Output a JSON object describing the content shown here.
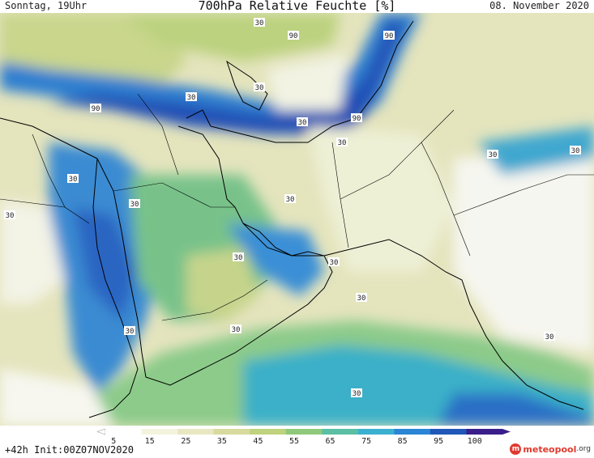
{
  "header": {
    "left": "Sonntag, 19Uhr",
    "title": "700hPa Relative Feuchte [%]",
    "right": "08. November 2020"
  },
  "footer": {
    "left": "+42h Init:00Z07NOV2020",
    "logo_prefix": "meteo",
    "logo_accent": "pool",
    "logo_tld": ".org"
  },
  "legend": {
    "ticks": [
      "5",
      "15",
      "25",
      "35",
      "45",
      "55",
      "65",
      "75",
      "85",
      "95",
      "100"
    ],
    "colors": [
      "#ffffff",
      "#f4f3dd",
      "#e9e7c2",
      "#d8da9e",
      "#bfd27d",
      "#8fca7a",
      "#5bbfa3",
      "#3cb0d0",
      "#2a86d4",
      "#2057b8",
      "#3a1e8a"
    ]
  },
  "contour_labels": [
    {
      "text": "30"
    },
    {
      "text": "90"
    },
    {
      "text": "90"
    },
    {
      "text": "30"
    },
    {
      "text": "30"
    },
    {
      "text": "90"
    },
    {
      "text": "30"
    },
    {
      "text": "90"
    },
    {
      "text": "30"
    },
    {
      "text": "30"
    },
    {
      "text": "30"
    },
    {
      "text": "30"
    },
    {
      "text": "30"
    },
    {
      "text": "30"
    },
    {
      "text": "30"
    },
    {
      "text": "30"
    },
    {
      "text": "30"
    },
    {
      "text": "30"
    },
    {
      "text": "30"
    },
    {
      "text": "30"
    },
    {
      "text": "30"
    },
    {
      "text": "30"
    }
  ]
}
